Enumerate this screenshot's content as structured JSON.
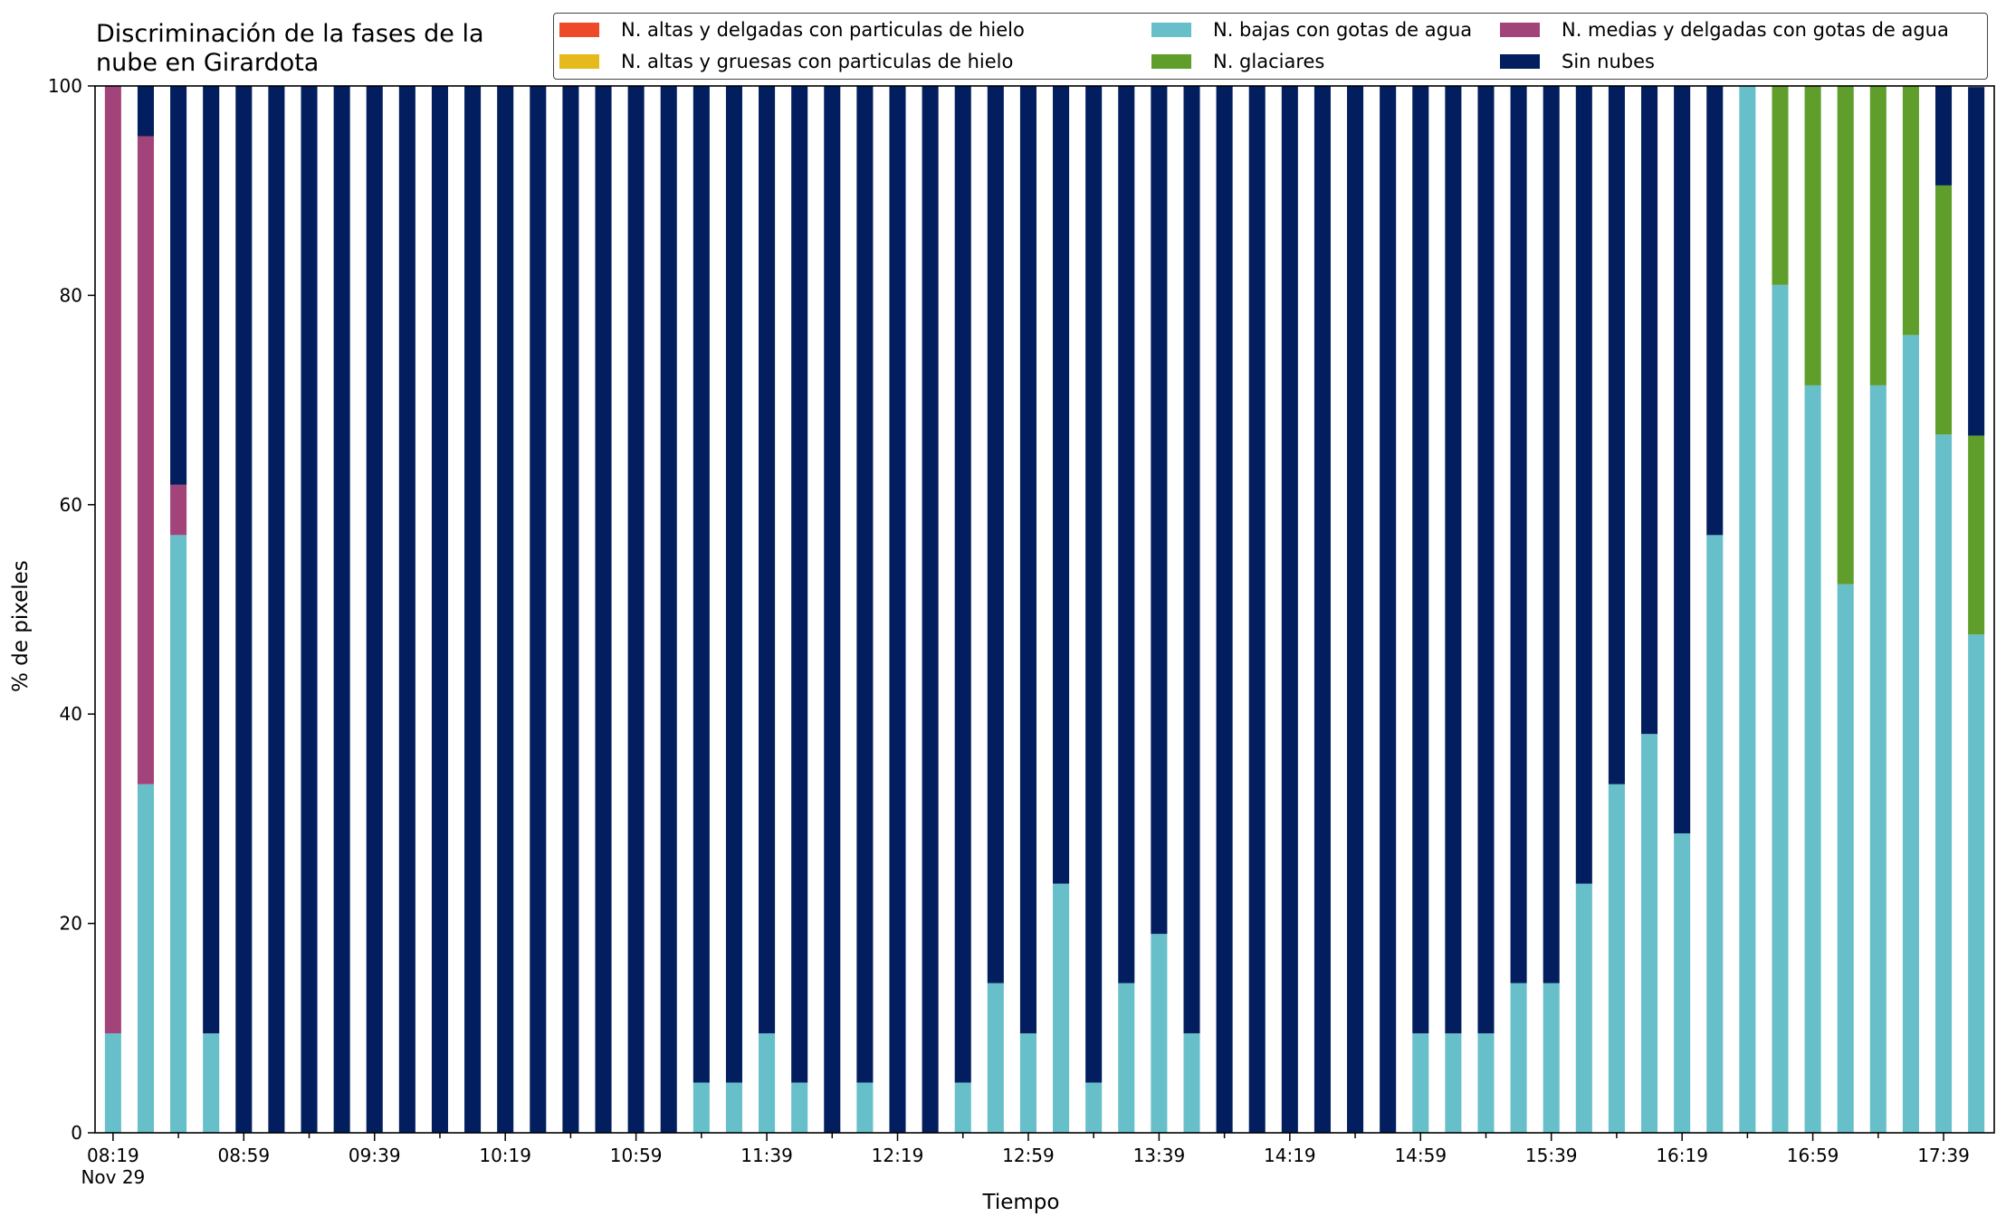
{
  "title": "Discriminación de la fases de la\nnube en Girardota",
  "title_lines": [
    "Discriminación de la fases de la",
    "nube en Girardota"
  ],
  "xlabel": "Tiempo",
  "ylabel": "% de pixeles",
  "legend": [
    {
      "name": "N. altas y delgadas con particulas de hielo",
      "color": "#ee4a2a"
    },
    {
      "name": "N. bajas con gotas de agua",
      "color": "#67bfca"
    },
    {
      "name": "N. medias y delgadas con gotas de agua",
      "color": "#a2447a"
    },
    {
      "name": "N. altas y gruesas con particulas de hielo",
      "color": "#e6b91c"
    },
    {
      "name": "N. glaciares",
      "color": "#5f9e2b"
    },
    {
      "name": "Sin nubes",
      "color": "#021e5e"
    }
  ],
  "chart_data": {
    "type": "bar",
    "stacked": true,
    "ylim": [
      0,
      100
    ],
    "yticks": [
      0,
      20,
      40,
      60,
      80,
      100
    ],
    "x_tick_labels": [
      "08:19",
      "08:59",
      "09:39",
      "10:19",
      "10:59",
      "11:39",
      "12:19",
      "12:59",
      "13:39",
      "14:19",
      "14:59",
      "15:39",
      "16:19",
      "16:59",
      "17:39"
    ],
    "x_tick_sublabel": "Nov 29",
    "bar_count": 58,
    "series": [
      {
        "name": "N. altas y delgadas con particulas de hielo",
        "color": "#ee4a2a",
        "values": [
          0,
          0,
          0,
          0,
          0,
          0,
          0,
          0,
          0,
          0,
          0,
          0,
          0,
          0,
          0,
          0,
          0,
          0,
          0,
          0,
          0,
          0,
          0,
          0,
          0,
          0,
          0,
          0,
          0,
          0,
          0,
          0,
          0,
          0,
          0,
          0,
          0,
          0,
          0,
          0,
          0,
          0,
          0,
          0,
          0,
          0,
          0,
          0,
          0,
          0,
          0,
          0,
          0,
          0,
          0,
          0,
          0,
          0
        ]
      },
      {
        "name": "N. altas y gruesas con particulas de hielo",
        "color": "#e6b91c",
        "values": [
          0,
          0,
          0,
          0,
          0,
          0,
          0,
          0,
          0,
          0,
          0,
          0,
          0,
          0,
          0,
          0,
          0,
          0,
          0,
          0,
          0,
          0,
          0,
          0,
          0,
          0,
          0,
          0,
          0,
          0,
          0,
          0,
          0,
          0,
          0,
          0,
          0,
          0,
          0,
          0,
          0,
          0,
          0,
          0,
          0,
          0,
          0,
          0,
          0,
          0,
          0,
          0,
          0,
          0,
          0,
          0,
          0,
          0
        ]
      },
      {
        "name": "N. bajas con gotas de agua",
        "color": "#67bfca",
        "values": [
          9.5,
          33.3,
          57.1,
          9.5,
          0,
          0,
          0,
          0,
          0,
          0,
          0,
          0,
          0,
          0,
          0,
          0,
          0,
          0,
          4.8,
          4.8,
          9.5,
          4.8,
          0,
          4.8,
          0,
          0,
          4.8,
          14.3,
          9.5,
          23.8,
          4.8,
          14.3,
          19.0,
          9.5,
          0,
          0,
          0,
          0,
          0,
          0,
          9.5,
          9.5,
          9.5,
          14.3,
          14.3,
          23.8,
          33.3,
          38.1,
          28.6,
          57.1,
          100,
          81.0,
          71.4,
          52.4,
          71.4,
          76.2,
          66.7,
          47.6
        ]
      },
      {
        "name": "N. glaciares",
        "color": "#5f9e2b",
        "values": [
          0,
          0,
          0,
          0,
          0,
          0,
          0,
          0,
          0,
          0,
          0,
          0,
          0,
          0,
          0,
          0,
          0,
          0,
          0,
          0,
          0,
          0,
          0,
          0,
          0,
          0,
          0,
          0,
          0,
          0,
          0,
          0,
          0,
          0,
          0,
          0,
          0,
          0,
          0,
          0,
          0,
          0,
          0,
          0,
          0,
          0,
          0,
          0,
          0,
          0,
          0,
          19.0,
          28.6,
          47.6,
          28.6,
          23.8,
          23.8,
          19.0
        ]
      },
      {
        "name": "N. medias y delgadas con gotas de agua",
        "color": "#a2447a",
        "values": [
          90.5,
          61.9,
          4.8,
          0,
          0,
          0,
          0,
          0,
          0,
          0,
          0,
          0,
          0,
          0,
          0,
          0,
          0,
          0,
          0,
          0,
          0,
          0,
          0,
          0,
          0,
          0,
          0,
          0,
          0,
          0,
          0,
          0,
          0,
          0,
          0,
          0,
          0,
          0,
          0,
          0,
          0,
          0,
          0,
          0,
          0,
          0,
          0,
          0,
          0,
          0,
          0,
          0,
          0,
          0,
          0,
          0,
          0,
          0
        ]
      },
      {
        "name": "Sin nubes",
        "color": "#021e5e",
        "values": [
          0,
          4.8,
          38.1,
          90.5,
          100,
          100,
          100,
          100,
          100,
          100,
          100,
          100,
          100,
          100,
          100,
          100,
          100,
          100,
          95.2,
          95.2,
          90.5,
          95.2,
          100,
          95.2,
          100,
          100,
          95.2,
          85.7,
          90.5,
          76.2,
          95.2,
          85.7,
          81.0,
          90.5,
          100,
          100,
          100,
          100,
          100,
          100,
          90.5,
          90.5,
          90.5,
          85.7,
          85.7,
          76.2,
          66.7,
          61.9,
          71.4,
          42.9,
          0,
          0,
          0,
          0,
          0,
          0,
          9.5,
          33.3
        ]
      }
    ]
  }
}
